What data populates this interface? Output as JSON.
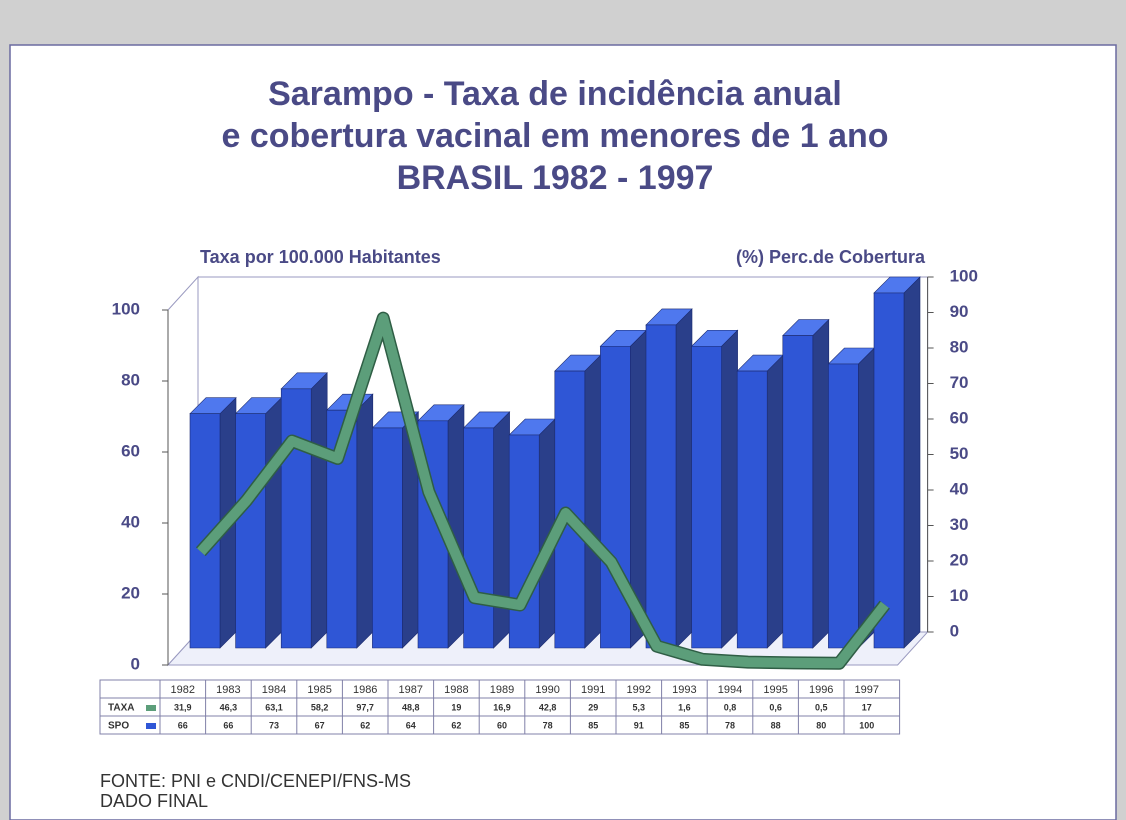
{
  "chart_data": {
    "type": "bar",
    "title": [
      "Sarampo - Taxa de incidência anual",
      "e cobertura vacinal em menores de 1 ano",
      "BRASIL 1982 - 1997"
    ],
    "ylabel": "Taxa por 100.000 Habitantes",
    "y2label": "(%) Perc.de Cobertura",
    "categories": [
      "1982",
      "1983",
      "1984",
      "1985",
      "1986",
      "1987",
      "1988",
      "1989",
      "1990",
      "1991",
      "1992",
      "1993",
      "1994",
      "1995",
      "1996",
      "1997"
    ],
    "series": [
      {
        "name": "TAXA",
        "type": "line",
        "color": "#5c9e7a",
        "values": [
          31.9,
          46.3,
          63.1,
          58.2,
          97.7,
          48.8,
          19,
          16.9,
          42.8,
          29,
          5.3,
          1.6,
          0.8,
          0.6,
          0.5,
          17
        ],
        "value_labels": [
          "31,9",
          "46,3",
          "63,1",
          "58,2",
          "97,7",
          "48,8",
          "19",
          "16,9",
          "42,8",
          "29",
          "5,3",
          "1,6",
          "0,8",
          "0,6",
          "0,5",
          "17"
        ]
      },
      {
        "name": "SPO",
        "type": "bar",
        "axis": "y2",
        "color": "#2f56d6",
        "values": [
          66,
          66,
          73,
          67,
          62,
          64,
          62,
          60,
          78,
          85,
          91,
          85,
          78,
          88,
          80,
          100
        ]
      }
    ],
    "ylim": [
      0,
      100
    ],
    "yticks": [
      0,
      20,
      40,
      60,
      80,
      100
    ],
    "y2lim": [
      0,
      100
    ],
    "y2ticks": [
      0,
      10,
      20,
      30,
      40,
      50,
      60,
      70,
      80,
      90,
      100
    ],
    "source": [
      "FONTE: PNI e CNDI/CENEPI/FNS-MS",
      "DADO FINAL"
    ]
  }
}
